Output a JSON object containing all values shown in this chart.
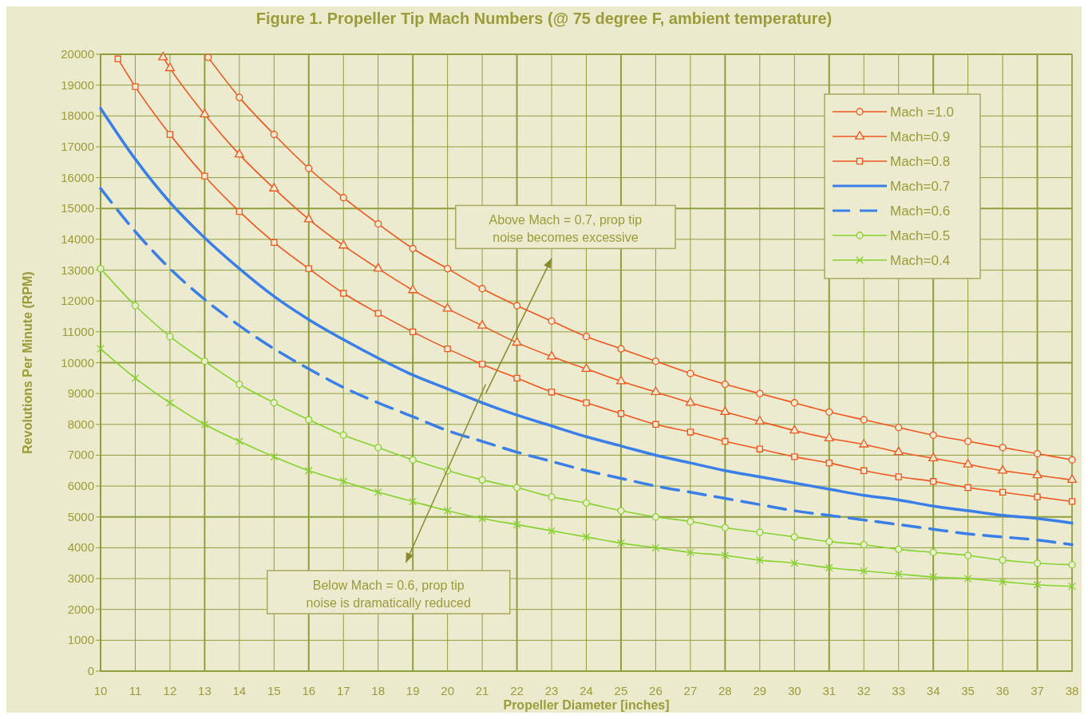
{
  "chart_data": {
    "type": "line",
    "title": "Figure 1.   Propeller Tip Mach Numbers (@ 75 degree F, ambient temperature)",
    "xlabel": "Propeller Diameter [inches]",
    "ylabel": "Revolutions Per Minute  (RPM)",
    "xlim": [
      10,
      38
    ],
    "xticks": [
      10,
      11,
      12,
      13,
      14,
      15,
      16,
      17,
      18,
      19,
      20,
      21,
      22,
      23,
      24,
      25,
      26,
      27,
      28,
      29,
      30,
      31,
      32,
      33,
      34,
      35,
      36,
      37,
      38
    ],
    "ylim": [
      0,
      20000
    ],
    "yticks": [
      0,
      1000,
      2000,
      3000,
      4000,
      5000,
      6000,
      7000,
      8000,
      9000,
      10000,
      11000,
      12000,
      13000,
      14000,
      15000,
      16000,
      17000,
      18000,
      19000,
      20000
    ],
    "grid": true,
    "legend": "top right",
    "annotations": [
      "Above Mach = 0.7, prop tip noise becomes excessive",
      "Below Mach = 0.6, prop tip noise is dramatically reduced"
    ],
    "series": [
      {
        "name": "Mach =1.0",
        "color": "#f0561e",
        "marker": "circle",
        "line_style": "solid",
        "x": [
          13.1,
          14,
          15,
          16,
          17,
          18,
          19,
          20,
          21,
          22,
          23,
          24,
          25,
          26,
          27,
          28,
          29,
          30,
          31,
          32,
          33,
          34,
          35,
          36,
          37,
          38
        ],
        "values": [
          19900,
          18600,
          17400,
          16300,
          15350,
          14500,
          13700,
          13050,
          12400,
          11850,
          11350,
          10850,
          10450,
          10050,
          9650,
          9300,
          9000,
          8700,
          8400,
          8150,
          7900,
          7650,
          7450,
          7250,
          7050,
          6850
        ]
      },
      {
        "name": "Mach=0.9",
        "color": "#f0561e",
        "marker": "triangle",
        "line_style": "solid",
        "x": [
          11.8,
          12,
          13,
          14,
          15,
          16,
          17,
          18,
          19,
          20,
          21,
          22,
          23,
          24,
          25,
          26,
          27,
          28,
          29,
          30,
          31,
          32,
          33,
          34,
          35,
          36,
          37,
          38
        ],
        "values": [
          19900,
          19550,
          18050,
          16750,
          15650,
          14650,
          13800,
          13050,
          12350,
          11750,
          11200,
          10650,
          10200,
          9800,
          9400,
          9050,
          8700,
          8400,
          8100,
          7800,
          7550,
          7350,
          7100,
          6900,
          6700,
          6500,
          6350,
          6200
        ]
      },
      {
        "name": "Mach=0.8",
        "color": "#f0561e",
        "marker": "square",
        "line_style": "solid",
        "x": [
          10.5,
          11,
          12,
          13,
          14,
          15,
          16,
          17,
          18,
          19,
          20,
          21,
          22,
          23,
          24,
          25,
          26,
          27,
          28,
          29,
          30,
          31,
          32,
          33,
          34,
          35,
          36,
          37,
          38
        ],
        "values": [
          19850,
          18950,
          17400,
          16050,
          14900,
          13900,
          13050,
          12250,
          11600,
          11000,
          10450,
          9950,
          9500,
          9050,
          8700,
          8350,
          8000,
          7750,
          7450,
          7200,
          6950,
          6750,
          6500,
          6300,
          6150,
          5950,
          5800,
          5650,
          5500
        ]
      },
      {
        "name": "Mach=0.7",
        "color": "#3a7ee8",
        "marker": "none",
        "line_style": "solid",
        "x": [
          10,
          11,
          12,
          13,
          14,
          15,
          16,
          17,
          18,
          19,
          20,
          21,
          22,
          23,
          24,
          25,
          26,
          27,
          28,
          29,
          30,
          31,
          32,
          33,
          34,
          35,
          36,
          37,
          38
        ],
        "values": [
          18250,
          16600,
          15200,
          14050,
          13050,
          12150,
          11400,
          10750,
          10150,
          9600,
          9150,
          8700,
          8300,
          7950,
          7600,
          7300,
          7000,
          6750,
          6500,
          6300,
          6100,
          5900,
          5700,
          5550,
          5350,
          5200,
          5050,
          4950,
          4800
        ]
      },
      {
        "name": "Mach=0.6",
        "color": "#3a7ee8",
        "marker": "none",
        "line_style": "dashed",
        "x": [
          10,
          11,
          12,
          13,
          14,
          15,
          16,
          17,
          18,
          19,
          20,
          21,
          22,
          23,
          24,
          25,
          26,
          27,
          28,
          29,
          30,
          31,
          32,
          33,
          34,
          35,
          36,
          37,
          38
        ],
        "values": [
          15650,
          14250,
          13050,
          12050,
          11200,
          10450,
          9800,
          9200,
          8700,
          8250,
          7800,
          7450,
          7100,
          6800,
          6500,
          6250,
          6000,
          5800,
          5600,
          5400,
          5200,
          5050,
          4900,
          4750,
          4600,
          4450,
          4350,
          4250,
          4100
        ]
      },
      {
        "name": "Mach=0.5",
        "color": "#86d22e",
        "marker": "circle",
        "line_style": "solid",
        "x": [
          10,
          11,
          12,
          13,
          14,
          15,
          16,
          17,
          18,
          19,
          20,
          21,
          22,
          23,
          24,
          25,
          26,
          27,
          28,
          29,
          30,
          31,
          32,
          33,
          34,
          35,
          36,
          37,
          38
        ],
        "values": [
          13050,
          11850,
          10850,
          10050,
          9300,
          8700,
          8150,
          7650,
          7250,
          6850,
          6500,
          6200,
          5950,
          5650,
          5450,
          5200,
          5000,
          4850,
          4650,
          4500,
          4350,
          4200,
          4100,
          3950,
          3850,
          3750,
          3600,
          3500,
          3450
        ]
      },
      {
        "name": "Mach=0.4",
        "color": "#86d22e",
        "marker": "cross",
        "line_style": "solid",
        "x": [
          10,
          11,
          12,
          13,
          14,
          15,
          16,
          17,
          18,
          19,
          20,
          21,
          22,
          23,
          24,
          25,
          26,
          27,
          28,
          29,
          30,
          31,
          32,
          33,
          34,
          35,
          36,
          37,
          38
        ],
        "values": [
          10450,
          9500,
          8700,
          8000,
          7450,
          6950,
          6500,
          6150,
          5800,
          5500,
          5200,
          4950,
          4750,
          4550,
          4350,
          4150,
          4000,
          3850,
          3750,
          3600,
          3500,
          3350,
          3250,
          3150,
          3050,
          3000,
          2900,
          2800,
          2750
        ]
      }
    ]
  }
}
